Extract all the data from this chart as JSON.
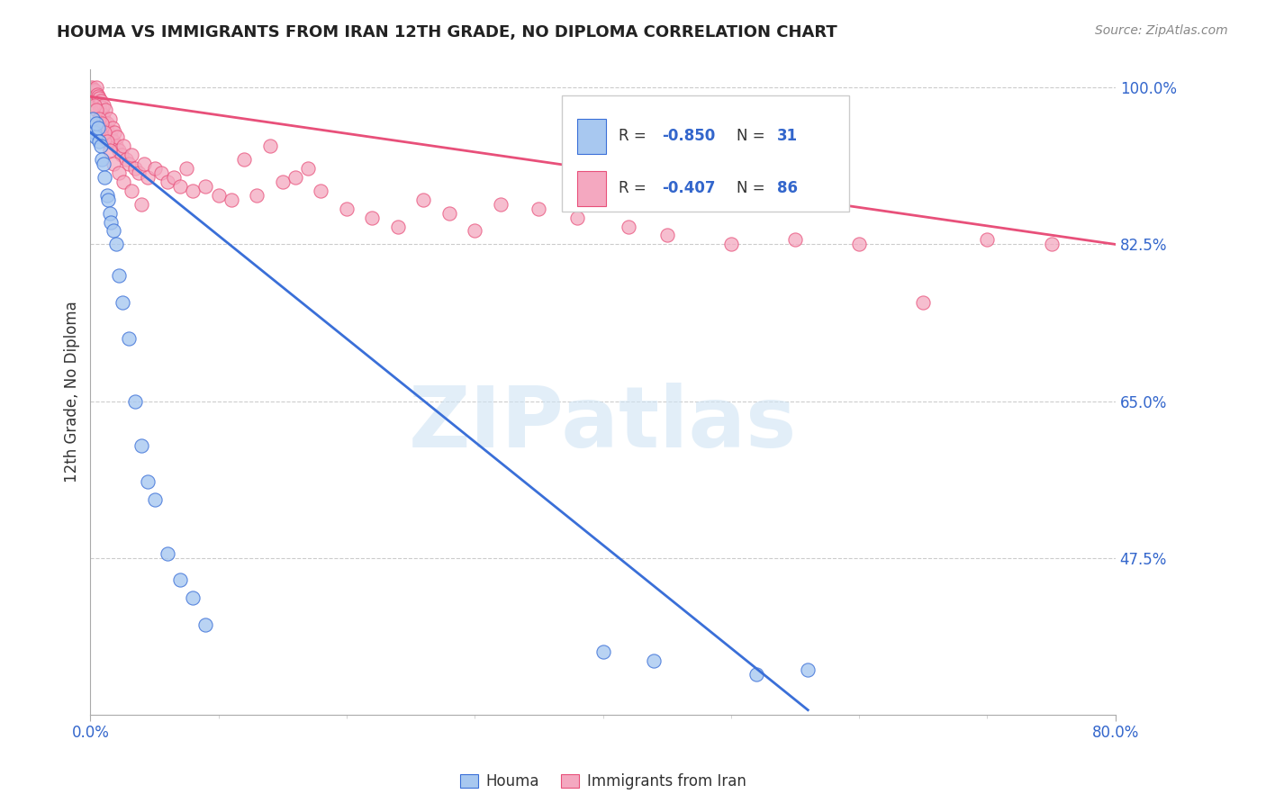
{
  "title": "HOUMA VS IMMIGRANTS FROM IRAN 12TH GRADE, NO DIPLOMA CORRELATION CHART",
  "source": "Source: ZipAtlas.com",
  "ylabel": "12th Grade, No Diploma",
  "right_yticks": [
    100.0,
    82.5,
    65.0,
    47.5
  ],
  "xlim": [
    0.0,
    80.0
  ],
  "ylim": [
    30.0,
    102.0
  ],
  "houma_r": -0.85,
  "houma_n": 31,
  "iran_r": -0.407,
  "iran_n": 86,
  "houma_color": "#a8c8f0",
  "iran_color": "#f4a8c0",
  "houma_line_color": "#3a6fd8",
  "iran_line_color": "#e8507a",
  "houma_x": [
    0.2,
    0.3,
    0.4,
    0.5,
    0.6,
    0.7,
    0.8,
    0.9,
    1.0,
    1.1,
    1.3,
    1.4,
    1.5,
    1.6,
    1.8,
    2.0,
    2.2,
    2.5,
    3.0,
    3.5,
    4.0,
    4.5,
    5.0,
    6.0,
    7.0,
    8.0,
    9.0,
    40.0,
    44.0,
    52.0,
    56.0
  ],
  "houma_y": [
    96.5,
    95.0,
    94.5,
    96.0,
    95.5,
    94.0,
    93.5,
    92.0,
    91.5,
    90.0,
    88.0,
    87.5,
    86.0,
    85.0,
    84.0,
    82.5,
    79.0,
    76.0,
    72.0,
    65.0,
    60.0,
    56.0,
    54.0,
    48.0,
    45.0,
    43.0,
    40.0,
    37.0,
    36.0,
    34.5,
    35.0
  ],
  "iran_x": [
    0.1,
    0.2,
    0.3,
    0.35,
    0.4,
    0.45,
    0.5,
    0.55,
    0.6,
    0.65,
    0.7,
    0.75,
    0.8,
    0.85,
    0.9,
    0.95,
    1.0,
    1.05,
    1.1,
    1.15,
    1.2,
    1.3,
    1.4,
    1.5,
    1.6,
    1.7,
    1.8,
    1.9,
    2.0,
    2.1,
    2.2,
    2.4,
    2.6,
    2.8,
    3.0,
    3.2,
    3.5,
    3.8,
    4.2,
    4.5,
    5.0,
    5.5,
    6.0,
    6.5,
    7.0,
    7.5,
    8.0,
    9.0,
    10.0,
    11.0,
    12.0,
    13.0,
    14.0,
    15.0,
    16.0,
    17.0,
    18.0,
    20.0,
    22.0,
    24.0,
    26.0,
    28.0,
    30.0,
    32.0,
    35.0,
    38.0,
    42.0,
    45.0,
    50.0,
    55.0,
    60.0,
    65.0,
    70.0,
    75.0,
    0.3,
    0.5,
    0.7,
    0.9,
    1.1,
    1.3,
    1.5,
    1.8,
    2.2,
    2.6,
    3.2,
    4.0
  ],
  "iran_y": [
    100.0,
    99.8,
    99.5,
    99.7,
    99.0,
    98.5,
    100.0,
    99.2,
    99.0,
    98.8,
    98.0,
    97.5,
    97.0,
    98.5,
    97.8,
    97.0,
    96.5,
    98.0,
    96.0,
    97.5,
    95.5,
    96.0,
    95.0,
    96.5,
    94.5,
    95.5,
    94.0,
    95.0,
    93.5,
    94.5,
    93.0,
    92.5,
    93.5,
    92.0,
    91.5,
    92.5,
    91.0,
    90.5,
    91.5,
    90.0,
    91.0,
    90.5,
    89.5,
    90.0,
    89.0,
    91.0,
    88.5,
    89.0,
    88.0,
    87.5,
    92.0,
    88.0,
    93.5,
    89.5,
    90.0,
    91.0,
    88.5,
    86.5,
    85.5,
    84.5,
    87.5,
    86.0,
    84.0,
    87.0,
    86.5,
    85.5,
    84.5,
    83.5,
    82.5,
    83.0,
    82.5,
    76.0,
    83.0,
    82.5,
    98.0,
    97.5,
    96.5,
    96.0,
    95.0,
    94.0,
    93.0,
    91.5,
    90.5,
    89.5,
    88.5,
    87.0
  ],
  "iran_trend_x": [
    0.0,
    80.0
  ],
  "iran_trend_y": [
    99.0,
    82.5
  ],
  "houma_trend_x": [
    0.0,
    56.0
  ],
  "houma_trend_y": [
    95.0,
    30.5
  ]
}
